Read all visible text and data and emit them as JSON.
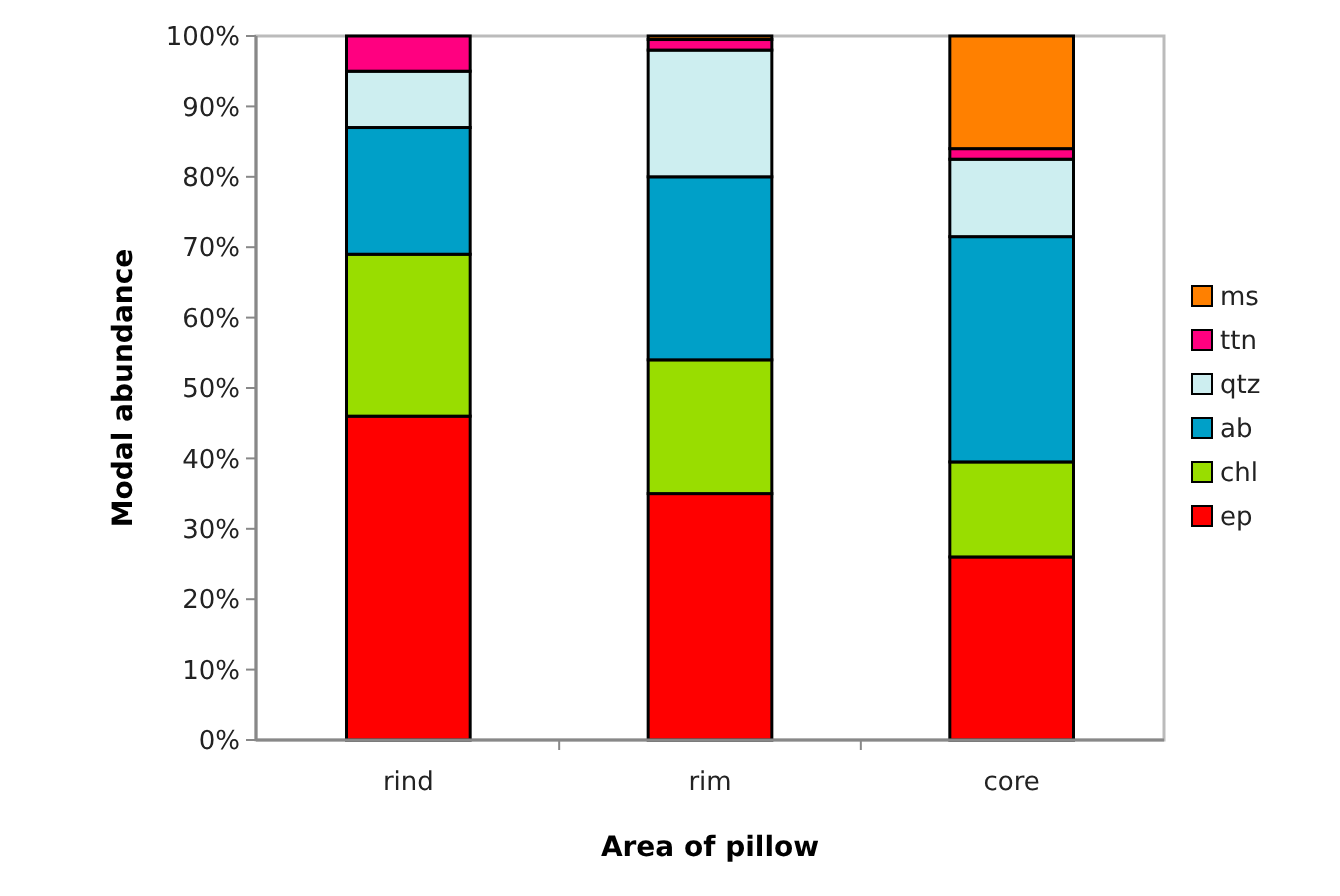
{
  "chart_data": {
    "type": "bar",
    "stacked": true,
    "xlabel": "Area of pillow",
    "ylabel": "Modal abundance",
    "categories": [
      "rind",
      "rim",
      "core"
    ],
    "series": [
      {
        "name": "ep",
        "color": "#ff0000",
        "values": [
          46,
          35,
          26
        ]
      },
      {
        "name": "chl",
        "color": "#99dd00",
        "values": [
          23,
          19,
          13.5
        ]
      },
      {
        "name": "ab",
        "color": "#00a0c8",
        "values": [
          18,
          26,
          32
        ]
      },
      {
        "name": "qtz",
        "color": "#cdeef0",
        "values": [
          8,
          18,
          11
        ]
      },
      {
        "name": "ttn",
        "color": "#ff0080",
        "values": [
          5,
          1.5,
          1.5
        ]
      },
      {
        "name": "ms",
        "color": "#ff8000",
        "values": [
          0,
          0.5,
          16
        ]
      }
    ],
    "ylim": [
      0,
      100
    ],
    "yticks": [
      {
        "value": 0,
        "label": "0%"
      },
      {
        "value": 10,
        "label": "10%"
      },
      {
        "value": 20,
        "label": "20%"
      },
      {
        "value": 30,
        "label": "30%"
      },
      {
        "value": 40,
        "label": "40%"
      },
      {
        "value": 50,
        "label": "50%"
      },
      {
        "value": 60,
        "label": "60%"
      },
      {
        "value": 70,
        "label": "70%"
      },
      {
        "value": 80,
        "label": "80%"
      },
      {
        "value": 90,
        "label": "90%"
      },
      {
        "value": 100,
        "label": "100%"
      }
    ],
    "grid": false,
    "legend": "right"
  }
}
